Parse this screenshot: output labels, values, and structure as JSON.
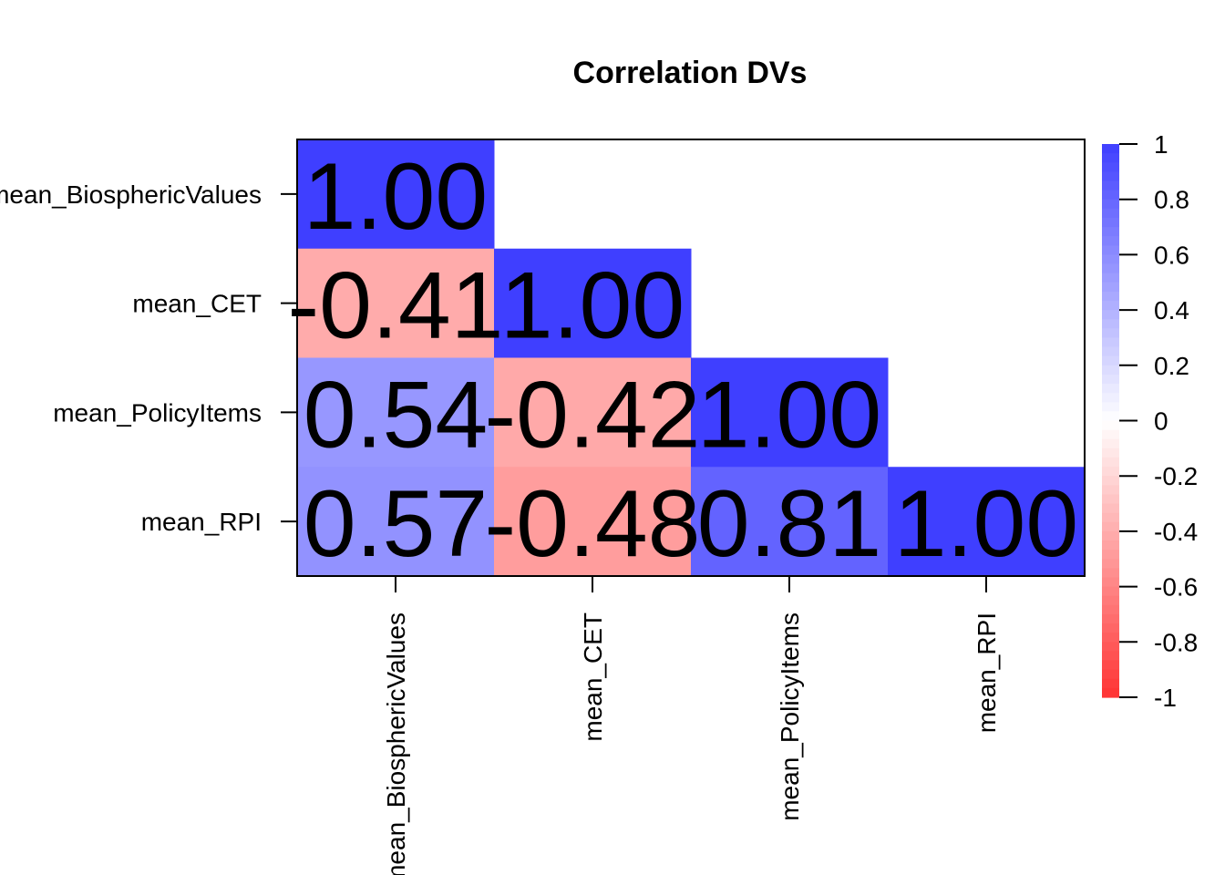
{
  "chart_data": {
    "type": "heatmap",
    "title": "Correlation DVs",
    "variables": [
      "mean_BiosphericValues",
      "mean_CET",
      "mean_PolicyItems",
      "mean_RPI"
    ],
    "row_labels": [
      "mean_BiosphericValues",
      "mean_CET",
      "mean_PolicyItems",
      "mean_RPI"
    ],
    "column_labels": [
      "mean_BiosphericValues",
      "mean_CET",
      "mean_PolicyItems",
      "mean_RPI"
    ],
    "layout": "lower-triangle",
    "matrix": [
      [
        1.0,
        null,
        null,
        null
      ],
      [
        -0.41,
        1.0,
        null,
        null
      ],
      [
        0.54,
        -0.42,
        1.0,
        null
      ],
      [
        0.57,
        -0.48,
        0.81,
        1.0
      ]
    ],
    "cell_labels": [
      [
        "1.00",
        "",
        "",
        ""
      ],
      [
        "-0.41",
        "1.00",
        "",
        ""
      ],
      [
        "0.54",
        "-0.42",
        "1.00",
        ""
      ],
      [
        "0.57",
        "-0.48",
        "0.81",
        "1.00"
      ]
    ],
    "color_scale": {
      "range": [
        -1,
        1
      ],
      "low": "#ff3333",
      "mid": "#ffffff",
      "high": "#3f3fff",
      "ticks": [
        1,
        0.8,
        0.6,
        0.4,
        0.2,
        0,
        -0.2,
        -0.4,
        -0.6,
        -0.8,
        -1
      ],
      "tick_labels": [
        "1",
        "0.8",
        "0.6",
        "0.4",
        "0.2",
        "0",
        "-0.2",
        "-0.4",
        "-0.6",
        "-0.8",
        "-1"
      ]
    },
    "legend": "right"
  }
}
